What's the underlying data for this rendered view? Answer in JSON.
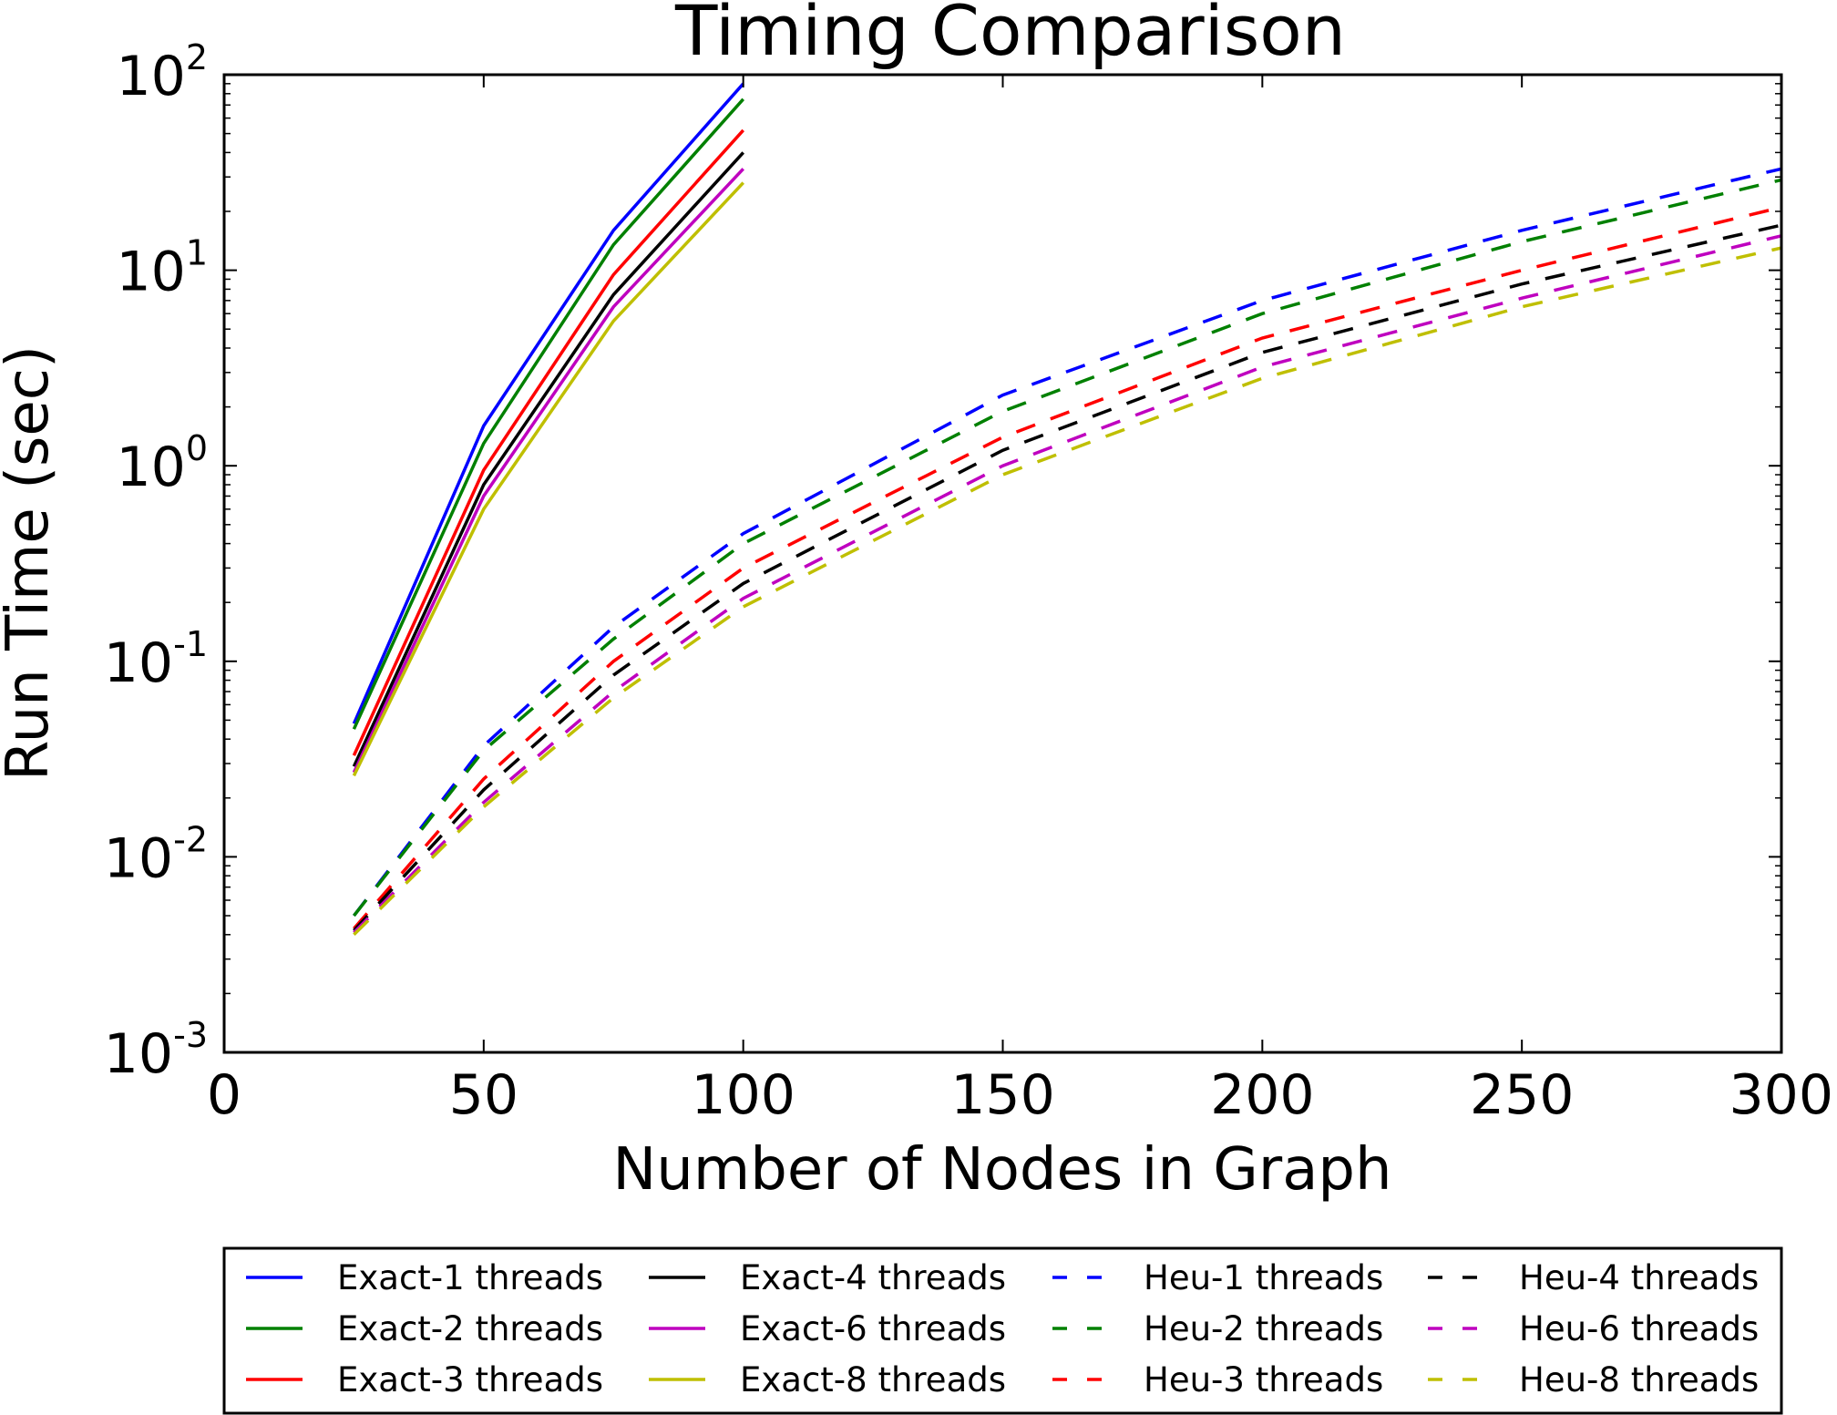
{
  "chart_data": {
    "type": "line",
    "title": "Timing Comparison",
    "xlabel": "Number of Nodes in Graph",
    "ylabel": "Run Time (sec)",
    "xlim": [
      0,
      300
    ],
    "ylim": [
      0.001,
      100
    ],
    "yscale": "log",
    "grid": false,
    "legend_position": "bottom",
    "x_ticks": [
      "0",
      "50",
      "100",
      "150",
      "200",
      "250",
      "300"
    ],
    "y_ticks": [
      {
        "base": "10",
        "exp": "-3"
      },
      {
        "base": "10",
        "exp": "-2"
      },
      {
        "base": "10",
        "exp": "-1"
      },
      {
        "base": "10",
        "exp": "0"
      },
      {
        "base": "10",
        "exp": "1"
      },
      {
        "base": "10",
        "exp": "2"
      }
    ],
    "series": [
      {
        "name": "Exact-1 threads",
        "color": "#0000ff",
        "dash": "solid",
        "x": [
          25,
          50,
          75,
          100
        ],
        "y": [
          0.048,
          1.6,
          16,
          90
        ]
      },
      {
        "name": "Exact-2 threads",
        "color": "#008000",
        "dash": "solid",
        "x": [
          25,
          50,
          75,
          100
        ],
        "y": [
          0.045,
          1.3,
          13.5,
          75
        ]
      },
      {
        "name": "Exact-3 threads",
        "color": "#ff0000",
        "dash": "solid",
        "x": [
          25,
          50,
          75,
          100
        ],
        "y": [
          0.033,
          0.95,
          9.5,
          52
        ]
      },
      {
        "name": "Exact-4 threads",
        "color": "#000000",
        "dash": "solid",
        "x": [
          25,
          50,
          75,
          100
        ],
        "y": [
          0.029,
          0.8,
          7.5,
          40
        ]
      },
      {
        "name": "Exact-6 threads",
        "color": "#bf00bf",
        "dash": "solid",
        "x": [
          25,
          50,
          75,
          100
        ],
        "y": [
          0.027,
          0.7,
          6.5,
          33
        ]
      },
      {
        "name": "Exact-8 threads",
        "color": "#bfbf00",
        "dash": "solid",
        "x": [
          25,
          50,
          75,
          100
        ],
        "y": [
          0.026,
          0.6,
          5.5,
          28
        ]
      },
      {
        "name": "Heu-1 threads",
        "color": "#0000ff",
        "dash": "dashed",
        "x": [
          25,
          50,
          75,
          100,
          150,
          200,
          250,
          300
        ],
        "y": [
          0.005,
          0.037,
          0.15,
          0.45,
          2.3,
          7,
          16,
          33
        ]
      },
      {
        "name": "Heu-2 threads",
        "color": "#008000",
        "dash": "dashed",
        "x": [
          25,
          50,
          75,
          100,
          150,
          200,
          250,
          300
        ],
        "y": [
          0.005,
          0.035,
          0.13,
          0.4,
          1.9,
          6,
          14,
          29
        ]
      },
      {
        "name": "Heu-3 threads",
        "color": "#ff0000",
        "dash": "dashed",
        "x": [
          25,
          50,
          75,
          100,
          150,
          200,
          250,
          300
        ],
        "y": [
          0.0043,
          0.025,
          0.1,
          0.3,
          1.4,
          4.5,
          10,
          21
        ]
      },
      {
        "name": "Heu-4 threads",
        "color": "#000000",
        "dash": "dashed",
        "x": [
          25,
          50,
          75,
          100,
          150,
          200,
          250,
          300
        ],
        "y": [
          0.0042,
          0.022,
          0.085,
          0.25,
          1.2,
          3.8,
          8.5,
          17
        ]
      },
      {
        "name": "Heu-6 threads",
        "color": "#bf00bf",
        "dash": "dashed",
        "x": [
          25,
          50,
          75,
          100,
          150,
          200,
          250,
          300
        ],
        "y": [
          0.0041,
          0.019,
          0.07,
          0.21,
          1.0,
          3.2,
          7.2,
          15
        ]
      },
      {
        "name": "Heu-8 threads",
        "color": "#bfbf00",
        "dash": "dashed",
        "x": [
          25,
          50,
          75,
          100,
          150,
          200,
          250,
          300
        ],
        "y": [
          0.004,
          0.018,
          0.065,
          0.19,
          0.9,
          2.8,
          6.5,
          13
        ]
      }
    ]
  }
}
